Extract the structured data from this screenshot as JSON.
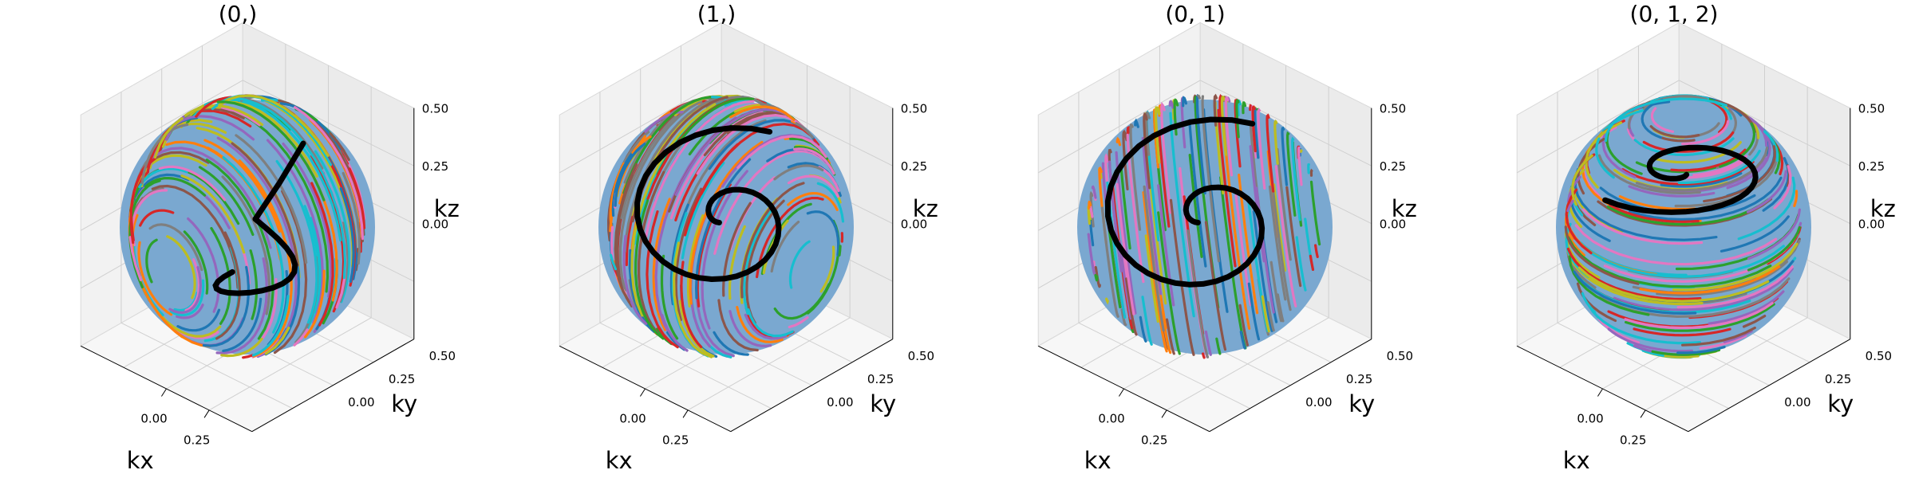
{
  "figure": {
    "panels": [
      {
        "title": "(0,)"
      },
      {
        "title": "(1,)"
      },
      {
        "title": "(0, 1)"
      },
      {
        "title": "(0, 1, 2)"
      }
    ]
  },
  "chart_data": [
    {
      "type": "line",
      "title": "(0,)",
      "xlabel": "kx",
      "ylabel": "ky",
      "zlabel": "kz",
      "projection": "3d",
      "xticks": [
        "0.00",
        "0.25"
      ],
      "yticks": [
        "0.00",
        "0.25",
        "0.50"
      ],
      "zticks": [
        "0.00",
        "0.25",
        "0.50"
      ],
      "xlim": [
        -0.5,
        0.5
      ],
      "ylim": [
        -0.5,
        0.5
      ],
      "zlim": [
        -0.5,
        0.5
      ],
      "surface": "unit sphere of radius 0.5 covered by many multicolored flow lines",
      "flow_lines_axis": "y",
      "highlight_line_color": "#000000",
      "grid": true
    },
    {
      "type": "line",
      "title": "(1,)",
      "xlabel": "kx",
      "ylabel": "ky",
      "zlabel": "kz",
      "projection": "3d",
      "xticks": [
        "0.00",
        "0.25"
      ],
      "yticks": [
        "0.00",
        "0.25",
        "0.50"
      ],
      "zticks": [
        "0.00",
        "0.25",
        "0.50"
      ],
      "xlim": [
        -0.5,
        0.5
      ],
      "ylim": [
        -0.5,
        0.5
      ],
      "zlim": [
        -0.5,
        0.5
      ],
      "surface": "unit sphere of radius 0.5 covered by many multicolored flow lines",
      "flow_lines_axis": "x",
      "highlight_line_color": "#000000",
      "grid": true
    },
    {
      "type": "line",
      "title": "(0, 1)",
      "xlabel": "kx",
      "ylabel": "ky",
      "zlabel": "kz",
      "projection": "3d",
      "xticks": [
        "0.00",
        "0.25"
      ],
      "yticks": [
        "0.00",
        "0.25",
        "0.50"
      ],
      "zticks": [
        "0.00",
        "0.25",
        "0.50"
      ],
      "xlim": [
        -0.5,
        0.5
      ],
      "ylim": [
        -0.5,
        0.5
      ],
      "zlim": [
        -0.5,
        0.5
      ],
      "surface": "unit sphere of radius 0.5 covered by many multicolored flow lines",
      "flow_lines_axis": "xy",
      "highlight_line_color": "#000000",
      "grid": true
    },
    {
      "type": "line",
      "title": "(0, 1, 2)",
      "xlabel": "kx",
      "ylabel": "ky",
      "zlabel": "kz",
      "projection": "3d",
      "xticks": [
        "0.00",
        "0.25"
      ],
      "yticks": [
        "0.00",
        "0.25",
        "0.50"
      ],
      "zticks": [
        "0.00",
        "0.25",
        "0.50"
      ],
      "xlim": [
        -0.5,
        0.5
      ],
      "ylim": [
        -0.5,
        0.5
      ],
      "zlim": [
        -0.5,
        0.5
      ],
      "surface": "unit sphere of radius 0.5 covered by many multicolored flow lines",
      "flow_lines_axis": "z",
      "highlight_line_color": "#000000",
      "grid": true
    }
  ],
  "palette": [
    "#1f77b4",
    "#ff7f0e",
    "#2ca02c",
    "#d62728",
    "#9467bd",
    "#8c564b",
    "#e377c2",
    "#7f7f7f",
    "#bcbd22",
    "#17becf"
  ]
}
